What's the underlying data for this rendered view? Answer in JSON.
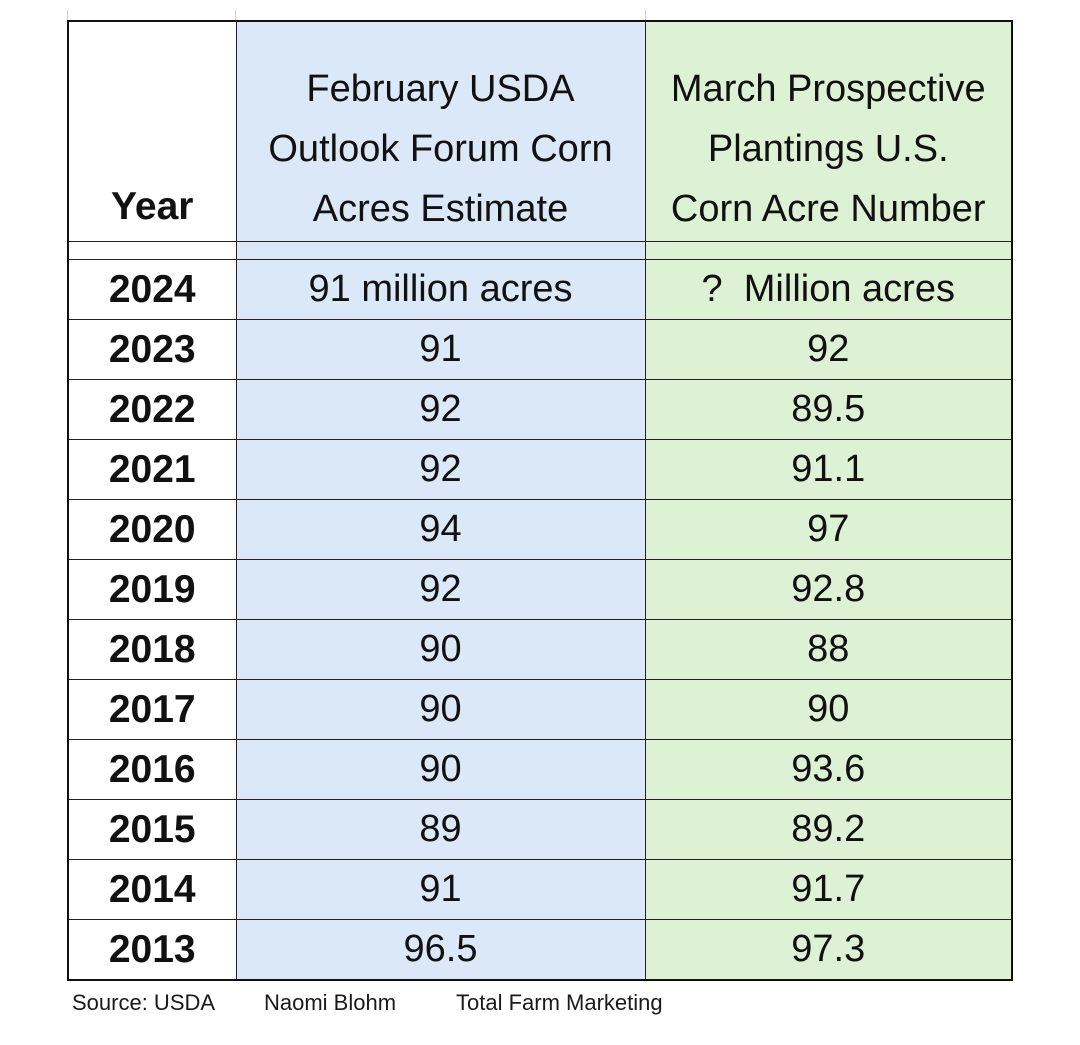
{
  "table": {
    "headers": {
      "year": "Year",
      "february": [
        "February USDA",
        "Outlook Forum Corn",
        "Acres Estimate"
      ],
      "march": [
        "March Prospective",
        "Plantings U.S.",
        "Corn Acre Number"
      ]
    },
    "rows": [
      {
        "year": "2024",
        "february": "91 million acres",
        "march": "?  Million acres"
      },
      {
        "year": "2023",
        "february": "91",
        "march": "92"
      },
      {
        "year": "2022",
        "february": "92",
        "march": "89.5"
      },
      {
        "year": "2021",
        "february": "92",
        "march": "91.1"
      },
      {
        "year": "2020",
        "february": "94",
        "march": "97"
      },
      {
        "year": "2019",
        "february": "92",
        "march": "92.8"
      },
      {
        "year": "2018",
        "february": "90",
        "march": "88"
      },
      {
        "year": "2017",
        "february": "90",
        "march": "90"
      },
      {
        "year": "2016",
        "february": "90",
        "march": "93.6"
      },
      {
        "year": "2015",
        "february": "89",
        "march": "89.2"
      },
      {
        "year": "2014",
        "february": "91",
        "march": "91.7"
      },
      {
        "year": "2013",
        "february": "96.5",
        "march": "97.3"
      }
    ]
  },
  "footer": {
    "source": "Source: USDA",
    "author": "Naomi Blohm",
    "company": "Total Farm Marketing"
  },
  "colors": {
    "february_fill": "#dbe8f7",
    "march_fill": "#ddf2d4",
    "border": "#222222"
  }
}
